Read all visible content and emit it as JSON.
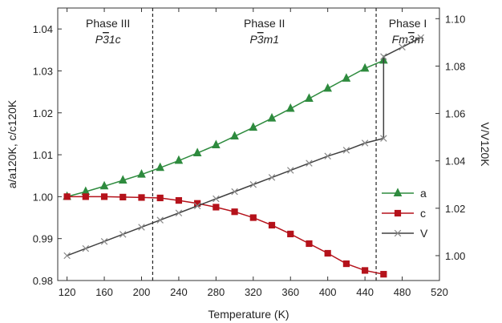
{
  "chart_data": {
    "type": "line",
    "xlabel": "Temperature (K)",
    "ylabel_left": "a/a120K, c/c120K",
    "ylabel_right": "V/V120K",
    "xlim": [
      110,
      520
    ],
    "xticks": [
      120,
      160,
      200,
      240,
      280,
      320,
      360,
      400,
      440,
      480,
      520
    ],
    "ylim_left": [
      0.98,
      1.045
    ],
    "yticks_left": [
      0.98,
      0.99,
      1.0,
      1.01,
      1.02,
      1.03,
      1.04
    ],
    "ytick_labels_left": [
      "0.98",
      "0.99",
      "1.00",
      "1.01",
      "1.02",
      "1.03",
      "1.04"
    ],
    "ylim_right": [
      0.9895,
      1.1045
    ],
    "yticks_right": [
      1.0,
      1.02,
      1.04,
      1.06,
      1.08,
      1.1
    ],
    "ytick_labels_right": [
      "1.00",
      "1.02",
      "1.04",
      "1.06",
      "1.08",
      "1.10"
    ],
    "phase_boundaries": [
      212,
      452
    ],
    "phases": [
      {
        "name": "Phase III",
        "group_pre": "P",
        "group_bar": "3",
        "group_post": "1c",
        "x_center": 164
      },
      {
        "name": "Phase II",
        "group_pre": "P",
        "group_bar": "3",
        "group_post": "m1",
        "x_center": 332
      },
      {
        "name": "Phase I",
        "group_pre": "Fm",
        "group_bar": "3",
        "group_post": "m",
        "x_center": 486
      }
    ],
    "series": [
      {
        "name": "a",
        "axis": "left",
        "color": "#2e8b3e",
        "marker": "triangle",
        "x": [
          120,
          140,
          160,
          180,
          200,
          220,
          240,
          260,
          280,
          300,
          320,
          340,
          360,
          380,
          400,
          420,
          440,
          460
        ],
        "y": [
          1.0,
          1.0012,
          1.0025,
          1.0039,
          1.0053,
          1.0069,
          1.0086,
          1.0104,
          1.0123,
          1.0144,
          1.0165,
          1.0187,
          1.021,
          1.0234,
          1.0258,
          1.0282,
          1.0306,
          1.0325
        ]
      },
      {
        "name": "c",
        "axis": "left",
        "color": "#b5121b",
        "marker": "square",
        "x": [
          120,
          140,
          160,
          180,
          200,
          220,
          240,
          260,
          280,
          300,
          320,
          340,
          360,
          380,
          400,
          420,
          440,
          460
        ],
        "y": [
          1.0,
          1.0,
          1.0,
          0.9999,
          0.9998,
          0.9997,
          0.9991,
          0.9984,
          0.9975,
          0.9964,
          0.995,
          0.9932,
          0.9911,
          0.9888,
          0.9865,
          0.984,
          0.9824,
          0.9815
        ]
      },
      {
        "name": "V",
        "axis": "right",
        "color": "#404040",
        "marker": "x",
        "x": [
          120,
          140,
          160,
          180,
          200,
          220,
          240,
          260,
          280,
          300,
          320,
          340,
          360,
          380,
          400,
          420,
          440,
          460,
          460,
          480,
          500
        ],
        "y": [
          1.0,
          1.003,
          1.006,
          1.009,
          1.012,
          1.015,
          1.018,
          1.021,
          1.024,
          1.027,
          1.03,
          1.033,
          1.036,
          1.039,
          1.042,
          1.0445,
          1.0475,
          1.0495,
          1.084,
          1.088,
          1.092
        ]
      }
    ],
    "legend_position": "right"
  }
}
